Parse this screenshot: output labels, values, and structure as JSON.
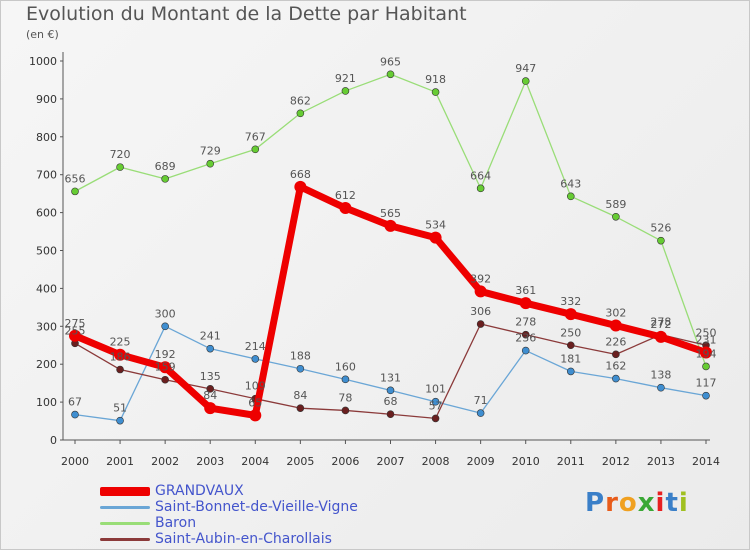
{
  "header": {
    "title": "Evolution du Montant de la Dette par Habitant",
    "subtitle": "(en €)"
  },
  "logo": {
    "letters": [
      "P",
      "r",
      "o",
      "x",
      "i",
      "t",
      "i"
    ],
    "colors": [
      "#3a7fc8",
      "#e85c1a",
      "#f0a020",
      "#3aa835",
      "#e82020",
      "#3a7fc8",
      "#a0c020"
    ]
  },
  "chart_data": {
    "type": "line",
    "title": "Evolution du Montant de la Dette par Habitant",
    "subtitle": "(en €)",
    "x": [
      "2000",
      "2001",
      "2002",
      "2003",
      "2004",
      "2005",
      "2006",
      "2007",
      "2008",
      "2009",
      "2010",
      "2011",
      "2012",
      "2013",
      "2014"
    ],
    "ylim": [
      0,
      1000
    ],
    "yticks": [
      0,
      100,
      200,
      300,
      400,
      500,
      600,
      700,
      800,
      900,
      1000
    ],
    "grid": false,
    "legend": "bottom-left",
    "series": [
      {
        "name": "GRANDVAUX",
        "color": "#ee0000",
        "marker": "#ee0000",
        "width": 7,
        "r": 6,
        "values": [
          275,
          225,
          192,
          84,
          65,
          668,
          612,
          565,
          534,
          392,
          361,
          332,
          302,
          272,
          231
        ]
      },
      {
        "name": "Saint-Bonnet-de-Vieille-Vigne",
        "color": "#6aa6d6",
        "marker": "#3f8ed0",
        "width": 1.3,
        "r": 3.5,
        "values": [
          67,
          51,
          300,
          241,
          214,
          188,
          160,
          131,
          101,
          71,
          236,
          181,
          162,
          138,
          117
        ]
      },
      {
        "name": "Baron",
        "color": "#99dd77",
        "marker": "#66cc33",
        "width": 1.3,
        "r": 3.5,
        "values": [
          656,
          720,
          689,
          729,
          767,
          862,
          921,
          965,
          918,
          664,
          947,
          643,
          589,
          526,
          194
        ]
      },
      {
        "name": "Saint-Aubin-en-Charollais",
        "color": "#8b3a3a",
        "marker": "#6a1f1f",
        "width": 1.3,
        "r": 3.5,
        "values": [
          255,
          186,
          159,
          135,
          109,
          84,
          78,
          68,
          57,
          306,
          278,
          250,
          226,
          278,
          250
        ]
      }
    ]
  }
}
